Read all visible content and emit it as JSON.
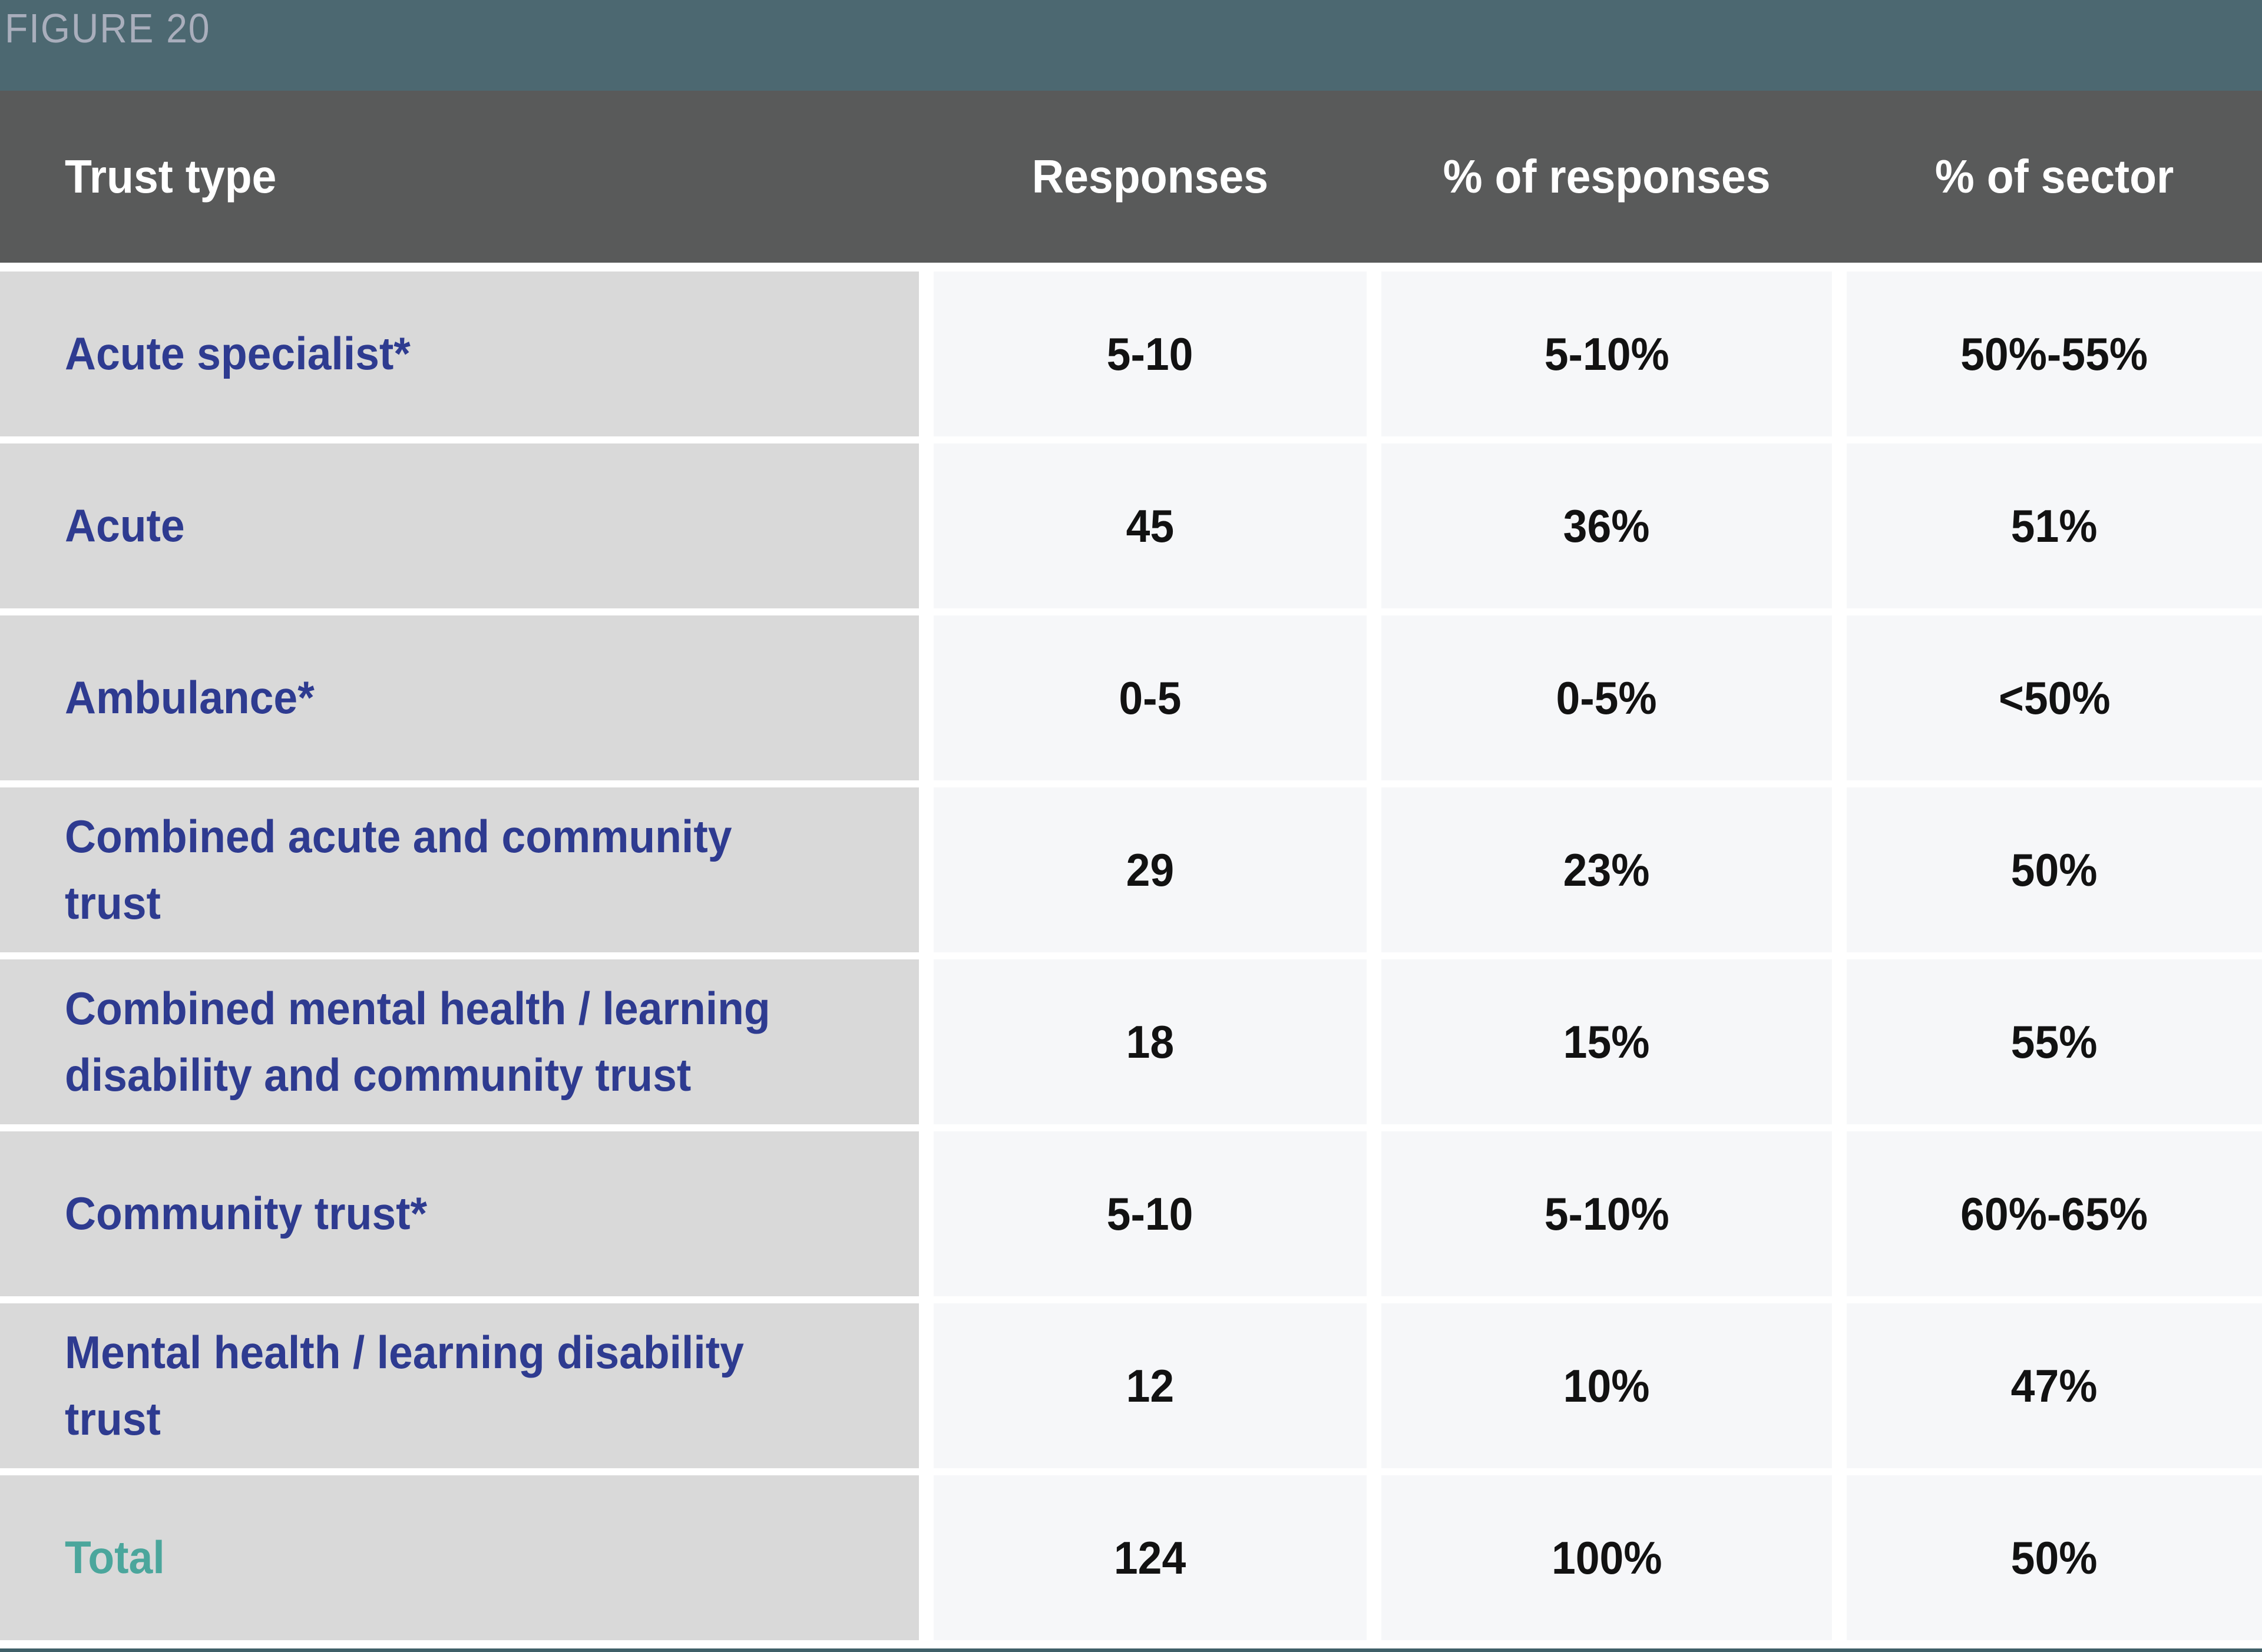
{
  "figure_label": "FIGURE 20",
  "colors": {
    "banner_background": "#4c6871",
    "banner_text": "#a9aebc",
    "header_background": "#595a5a",
    "header_text": "#ffffff",
    "label_cell_background": "#d9d9d9",
    "label_text": "#2e3b90",
    "total_label_text": "#4ba69c",
    "value_cell_background": "#f6f7f9",
    "value_text": "#121212",
    "bottom_rule": "#3f5f68"
  },
  "chart_data": {
    "type": "table",
    "title": "FIGURE 20",
    "columns": [
      "Trust type",
      "Responses",
      "% of responses",
      "% of sector"
    ],
    "rows": [
      {
        "trust_type": "Acute specialist*",
        "responses": "5-10",
        "pct_of_responses": "5-10%",
        "pct_of_sector": "50%-55%"
      },
      {
        "trust_type": "Acute",
        "responses": "45",
        "pct_of_responses": "36%",
        "pct_of_sector": "51%"
      },
      {
        "trust_type": "Ambulance*",
        "responses": "0-5",
        "pct_of_responses": "0-5%",
        "pct_of_sector": "<50%"
      },
      {
        "trust_type": "Combined acute and community\ntrust",
        "responses": "29",
        "pct_of_responses": "23%",
        "pct_of_sector": "50%"
      },
      {
        "trust_type": "Combined mental health / learning\ndisability and community trust",
        "responses": "18",
        "pct_of_responses": "15%",
        "pct_of_sector": "55%"
      },
      {
        "trust_type": "Community trust*",
        "responses": "5-10",
        "pct_of_responses": "5-10%",
        "pct_of_sector": "60%-65%"
      },
      {
        "trust_type": "Mental health / learning disability\ntrust",
        "responses": "12",
        "pct_of_responses": "10%",
        "pct_of_sector": "47%"
      },
      {
        "trust_type": "Total",
        "responses": "124",
        "pct_of_responses": "100%",
        "pct_of_sector": "50%"
      }
    ]
  }
}
